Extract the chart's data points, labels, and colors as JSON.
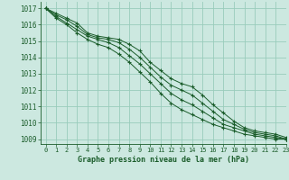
{
  "title": "Graphe pression niveau de la mer (hPa)",
  "bg_color": "#cce8e0",
  "grid_color": "#99ccbb",
  "line_color": "#1a5c2a",
  "xlim": [
    -0.5,
    23
  ],
  "ylim": [
    1008.7,
    1017.4
  ],
  "yticks": [
    1009,
    1010,
    1011,
    1012,
    1013,
    1014,
    1015,
    1016,
    1017
  ],
  "xticks": [
    0,
    1,
    2,
    3,
    4,
    5,
    6,
    7,
    8,
    9,
    10,
    11,
    12,
    13,
    14,
    15,
    16,
    17,
    18,
    19,
    20,
    21,
    22,
    23
  ],
  "series": [
    [
      1017.0,
      1016.7,
      1016.4,
      1016.1,
      1015.5,
      1015.3,
      1015.2,
      1015.1,
      1014.8,
      1014.4,
      1013.7,
      1013.2,
      1012.7,
      1012.4,
      1012.2,
      1011.7,
      1011.1,
      1010.6,
      1010.1,
      1009.7,
      1009.5,
      1009.4,
      1009.3,
      1009.1
    ],
    [
      1017.0,
      1016.6,
      1016.3,
      1015.9,
      1015.4,
      1015.2,
      1015.1,
      1014.9,
      1014.5,
      1014.0,
      1013.4,
      1012.8,
      1012.3,
      1012.0,
      1011.7,
      1011.2,
      1010.7,
      1010.2,
      1009.9,
      1009.6,
      1009.4,
      1009.3,
      1009.2,
      1009.0
    ],
    [
      1017.0,
      1016.5,
      1016.1,
      1015.7,
      1015.3,
      1015.1,
      1014.9,
      1014.6,
      1014.1,
      1013.6,
      1013.0,
      1012.4,
      1011.8,
      1011.4,
      1011.1,
      1010.7,
      1010.3,
      1009.9,
      1009.7,
      1009.5,
      1009.3,
      1009.2,
      1009.1,
      1009.0
    ],
    [
      1017.0,
      1016.4,
      1016.0,
      1015.5,
      1015.1,
      1014.8,
      1014.6,
      1014.2,
      1013.7,
      1013.1,
      1012.5,
      1011.8,
      1011.2,
      1010.8,
      1010.5,
      1010.2,
      1009.9,
      1009.7,
      1009.5,
      1009.3,
      1009.2,
      1009.1,
      1009.0,
      1009.0
    ]
  ],
  "title_fontsize": 6.0,
  "tick_fontsize": 5.0,
  "ytick_fontsize": 5.5,
  "linewidth": 0.7,
  "markersize": 3.0,
  "markeredgewidth": 0.8
}
